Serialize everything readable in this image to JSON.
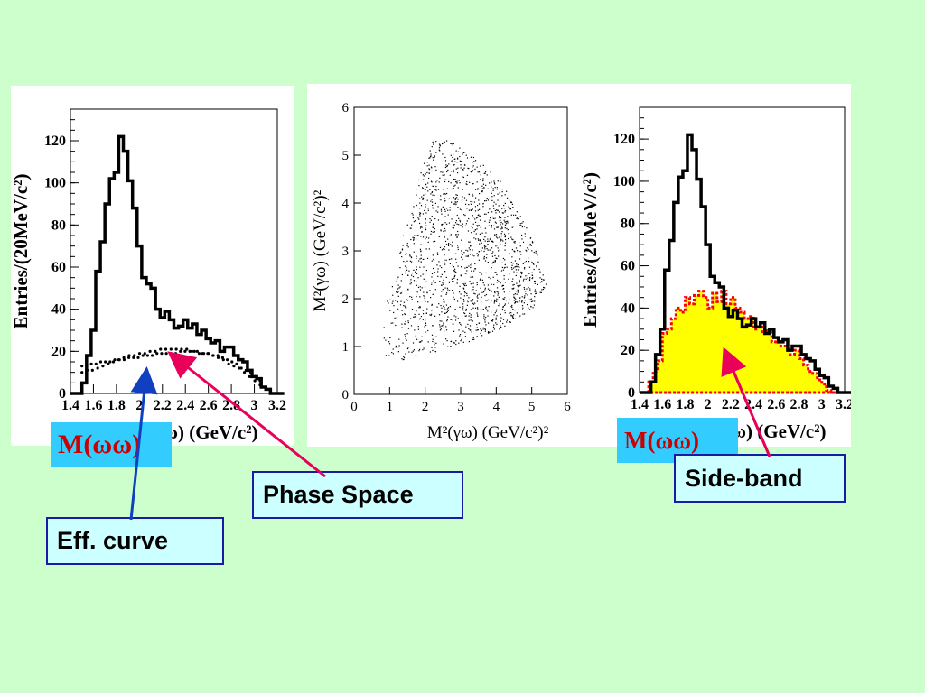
{
  "chart_data": [
    {
      "type": "histogram",
      "xlabel": "M(ωω) (GeV/c²)",
      "ylabel": "Entries/(20MeV/c²)",
      "xlim": [
        1.4,
        3.2
      ],
      "ylim": [
        0,
        135
      ],
      "x_ticks": [
        "1.4",
        "1.6",
        "1.8",
        "2",
        "2.2",
        "2.4",
        "2.6",
        "2.8",
        "3",
        "3.2"
      ],
      "y_ticks": [
        "0",
        "20",
        "40",
        "60",
        "80",
        "100",
        "120"
      ],
      "series": [
        {
          "values": [
            0,
            5,
            18,
            30,
            58,
            72,
            90,
            102,
            105,
            122,
            115,
            101,
            88,
            70,
            55,
            52,
            50,
            40,
            36,
            39,
            35,
            31,
            32,
            35,
            31,
            33,
            28,
            30,
            26,
            24,
            25,
            20,
            22,
            22,
            18,
            16,
            15,
            11,
            8,
            7,
            3,
            2,
            0,
            0,
            0
          ]
        },
        {
          "style": "dotted",
          "values": [
            13,
            13,
            14,
            14,
            15,
            15,
            15,
            16,
            16,
            16,
            17,
            17,
            17,
            18,
            18,
            18,
            19,
            19,
            19,
            19,
            19,
            20,
            20,
            20,
            20,
            19,
            19,
            19,
            18,
            18,
            17,
            16,
            15,
            14,
            12,
            11,
            10,
            8,
            6
          ]
        },
        {
          "style": "dotted",
          "values": [
            10,
            11,
            11,
            12,
            13,
            14,
            15,
            16,
            17,
            18,
            18,
            19,
            19,
            20,
            20,
            21,
            21,
            21,
            21,
            21,
            21,
            20,
            20,
            19,
            19,
            18,
            17,
            16,
            14,
            13,
            12,
            10,
            8,
            6,
            4
          ]
        }
      ]
    },
    {
      "type": "scatter",
      "xlabel": "M²(γω) (GeV/c²)²",
      "ylabel": "M²(γω) (GeV/c²)²",
      "xlim": [
        0,
        6
      ],
      "ylim": [
        0,
        6
      ],
      "x_ticks": [
        "0",
        "1",
        "2",
        "3",
        "4",
        "5",
        "6"
      ],
      "y_ticks": [
        "0",
        "1",
        "2",
        "3",
        "4",
        "5",
        "6"
      ],
      "region": [
        [
          0.7,
          0.8
        ],
        [
          0.8,
          1.7
        ],
        [
          1.1,
          2.6
        ],
        [
          1.5,
          3.7
        ],
        [
          1.9,
          4.8
        ],
        [
          2.2,
          5.4
        ],
        [
          2.7,
          5.3
        ],
        [
          3.3,
          5.0
        ],
        [
          4.0,
          4.6
        ],
        [
          4.6,
          3.9
        ],
        [
          5.1,
          3.1
        ],
        [
          5.4,
          2.3
        ],
        [
          5.0,
          1.8
        ],
        [
          4.2,
          1.4
        ],
        [
          3.2,
          1.1
        ],
        [
          2.1,
          0.85
        ],
        [
          1.2,
          0.7
        ]
      ],
      "points": [
        [
          1.5,
          1.0
        ],
        [
          2.0,
          1.5
        ],
        [
          2.5,
          2.0
        ],
        [
          3.0,
          2.5
        ],
        [
          3.5,
          3.0
        ],
        [
          4.0,
          3.5
        ],
        [
          4.5,
          3.0
        ],
        [
          5.0,
          2.5
        ],
        [
          2.2,
          3.5
        ],
        [
          2.8,
          4.5
        ],
        [
          1.5,
          2.5
        ],
        [
          3.5,
          1.5
        ],
        [
          4.2,
          2.0
        ],
        [
          2.5,
          4.2
        ],
        [
          1.2,
          1.8
        ]
      ]
    },
    {
      "type": "histogram",
      "xlabel": "M(ωω) (GeV/c²)",
      "ylabel": "Entries/(20MeV/c²)",
      "xlim": [
        1.4,
        3.2
      ],
      "ylim": [
        0,
        135
      ],
      "x_ticks": [
        "1.4",
        "1.6",
        "1.8",
        "2",
        "2.2",
        "2.4",
        "2.6",
        "2.8",
        "3",
        "3.2"
      ],
      "y_ticks": [
        "0",
        "20",
        "40",
        "60",
        "80",
        "100",
        "120"
      ],
      "series": [
        {
          "values": [
            0,
            5,
            18,
            30,
            58,
            72,
            90,
            102,
            105,
            122,
            115,
            101,
            88,
            70,
            55,
            52,
            50,
            40,
            36,
            39,
            35,
            31,
            32,
            35,
            31,
            33,
            28,
            30,
            26,
            24,
            25,
            20,
            22,
            22,
            18,
            16,
            15,
            11,
            8,
            7,
            3,
            2,
            0,
            0,
            0
          ]
        },
        {
          "style": "filled",
          "values": [
            0,
            0,
            5,
            10,
            15,
            28,
            30,
            35,
            40,
            38,
            45,
            42,
            46,
            48,
            45,
            40,
            47,
            43,
            48,
            42,
            45,
            40,
            38,
            35,
            36,
            30,
            31,
            28,
            30,
            24,
            25,
            22,
            21,
            18,
            20,
            16,
            13,
            10,
            9,
            6,
            4,
            1,
            0,
            0,
            0
          ]
        }
      ]
    }
  ],
  "annotations": {
    "mww_left": "M(ωω)",
    "mww_right": "M(ωω)",
    "phase_space": "Phase Space",
    "eff_curve": "Eff. curve",
    "side_band": "Side-band"
  },
  "colors": {
    "background": "#ccffcc",
    "box_fill": "#ccffff",
    "box_border": "#1a1aa8",
    "mww_bg": "#33ccff",
    "mww_text": "#cc0000",
    "arrow_pink": "#e8005a",
    "arrow_blue": "#1040c0",
    "sideband_fill": "#ffff00",
    "sideband_edge": "#ff0000"
  }
}
